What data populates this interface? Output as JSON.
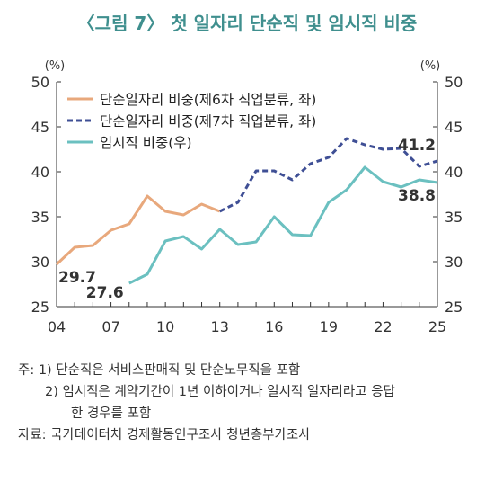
{
  "title": "〈그림 7〉 첫 일자리 단순직 및 임시직 비중",
  "notes": {
    "line1": "주:  1) 단순직은 서비스판매직 및 단순노무직을 포함",
    "line2": "2) 임시직은 계약기간이 1년 이하이거나 일시적 일자리라고 응답",
    "line3": "한 경우를 포함",
    "source": "자료: 국가데이터처 경제활동인구조사 청년층부가조사"
  },
  "chart_data": {
    "type": "line",
    "x_tick_labels": [
      "04",
      "07",
      "10",
      "13",
      "16",
      "19",
      "22",
      "25"
    ],
    "x_tick_years": [
      2004,
      2007,
      2010,
      2013,
      2016,
      2019,
      2022,
      2025
    ],
    "xlim": [
      2004,
      2025
    ],
    "left_axis": {
      "unit": "(%)",
      "ylim": [
        25,
        50
      ],
      "ticks": [
        "25",
        "30",
        "35",
        "40",
        "45",
        "50"
      ]
    },
    "right_axis": {
      "unit": "(%)",
      "ylim": [
        25,
        50
      ],
      "ticks": [
        "25",
        "30",
        "35",
        "40",
        "45",
        "50"
      ]
    },
    "grid": false,
    "legend_position": "top-left",
    "series": [
      {
        "name": "단순일자리 비중(제6차 직업분류, 좌)",
        "color": "#e8a87c",
        "style": "solid",
        "x": [
          2004,
          2005,
          2006,
          2007,
          2008,
          2009,
          2010,
          2011,
          2012,
          2013
        ],
        "values": [
          29.7,
          31.6,
          31.8,
          33.5,
          34.2,
          37.3,
          35.6,
          35.2,
          36.4,
          35.6
        ]
      },
      {
        "name": "단순일자리 비중(제7차 직업분류, 좌)",
        "color": "#3f4f95",
        "style": "dashed",
        "x": [
          2013,
          2014,
          2015,
          2016,
          2017,
          2018,
          2019,
          2020,
          2021,
          2022,
          2023,
          2024,
          2025
        ],
        "values": [
          35.6,
          36.6,
          40.1,
          40.1,
          39.1,
          40.9,
          41.6,
          43.7,
          43.0,
          42.5,
          42.6,
          40.6,
          41.2
        ]
      },
      {
        "name": "임시직 비중(우)",
        "color": "#6bc0c0",
        "style": "solid",
        "x": [
          2008,
          2009,
          2010,
          2011,
          2012,
          2013,
          2014,
          2015,
          2016,
          2017,
          2018,
          2019,
          2020,
          2021,
          2022,
          2023,
          2024,
          2025
        ],
        "values": [
          27.6,
          28.6,
          32.3,
          32.8,
          31.4,
          33.6,
          31.9,
          32.2,
          35.0,
          33.0,
          32.9,
          36.6,
          38.0,
          40.5,
          38.9,
          38.3,
          39.1,
          38.8
        ]
      }
    ],
    "annotations": [
      {
        "text": "29.7",
        "series": 0,
        "x": 2004
      },
      {
        "text": "27.6",
        "series": 2,
        "x": 2008
      },
      {
        "text": "41.2",
        "series": 1,
        "x": 2025
      },
      {
        "text": "38.8",
        "series": 2,
        "x": 2025
      }
    ]
  }
}
